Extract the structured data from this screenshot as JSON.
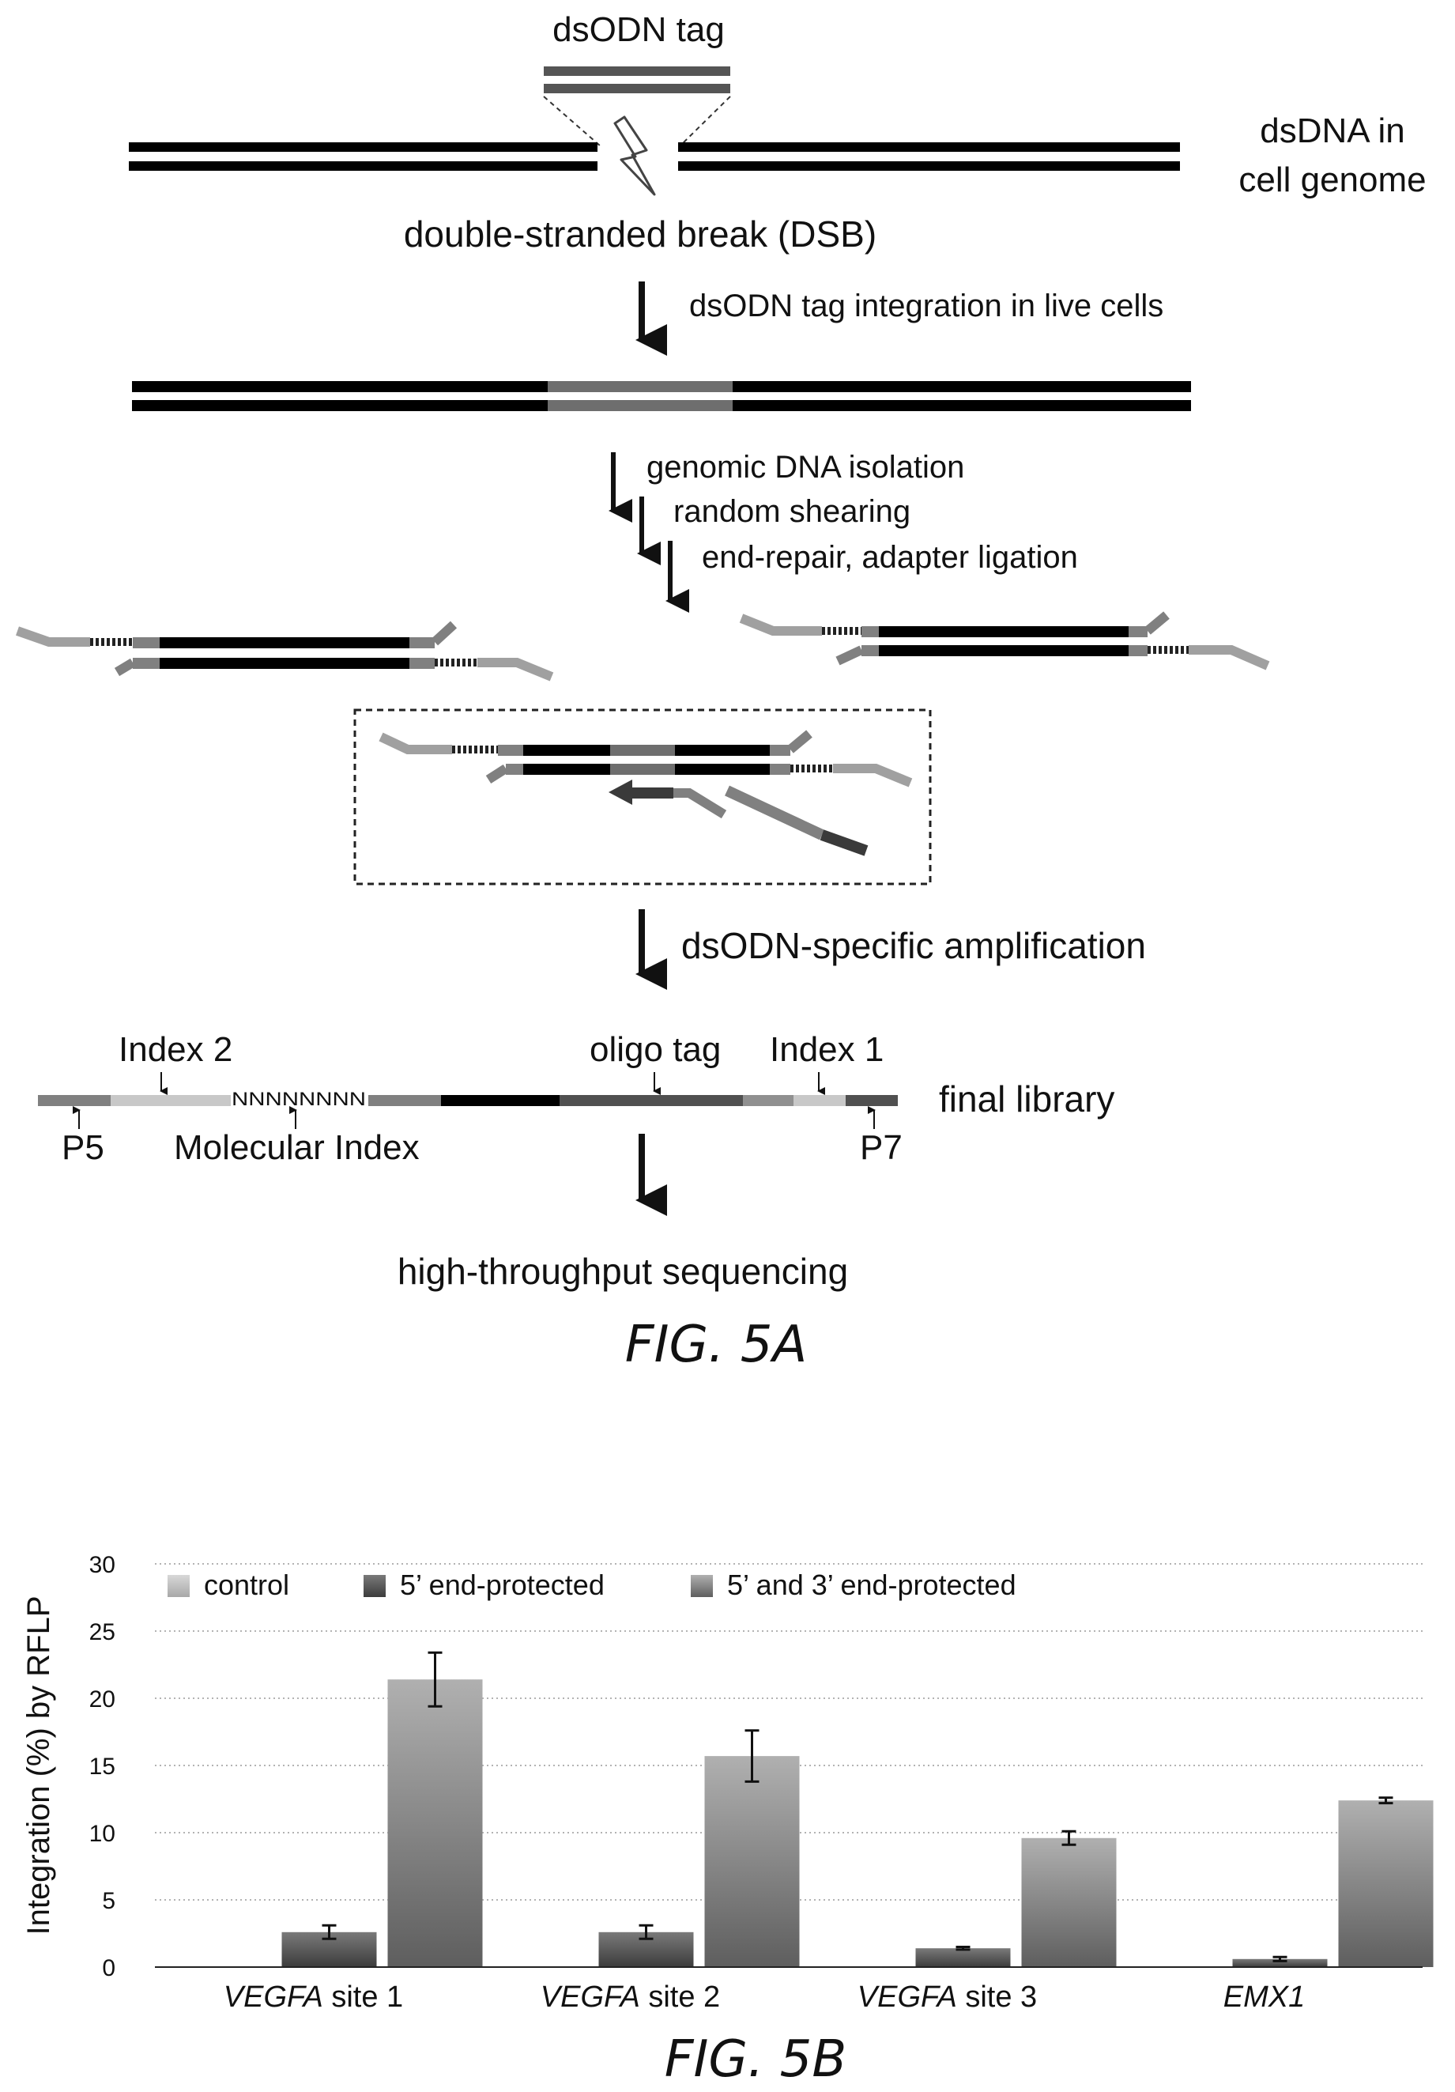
{
  "fig5a": {
    "tag_label": "dsODN tag",
    "genome_label_line1": "dsDNA in",
    "genome_label_line2": "cell genome",
    "dsb_label": "double-stranded break (DSB)",
    "step_integration": "dsODN tag integration in live cells",
    "step_isolation": "genomic DNA isolation",
    "step_shearing": "random shearing",
    "step_ligation": "end-repair, adapter ligation",
    "step_amplification": "dsODN-specific amplification",
    "index2_label": "Index 2",
    "oligo_tag_label": "oligo tag",
    "index1_label": "Index 1",
    "final_library_label": "final library",
    "p5_label": "P5",
    "molecular_index_label": "Molecular Index",
    "nnn_label": "NNNNNNNN",
    "p7_label": "P7",
    "step_sequencing": "high-throughput sequencing",
    "caption": "FIG. 5A"
  },
  "fig5b": {
    "caption": "FIG. 5B",
    "colors": {
      "control": "#bdbdbd",
      "five_prime": "#5a5a5a",
      "both": "#8f8f8f"
    }
  },
  "chart_data": {
    "type": "bar",
    "title": "",
    "xlabel": "",
    "ylabel": "Integration (%) by RFLP",
    "ylim": [
      0,
      30
    ],
    "yticks": [
      0,
      5,
      10,
      15,
      20,
      25,
      30
    ],
    "grid": true,
    "legend_position": "top",
    "categories_main": [
      "VEGFA",
      "VEGFA",
      "VEGFA",
      "EMX1"
    ],
    "categories_suffix": [
      " site 1",
      " site 2",
      " site 3",
      ""
    ],
    "series": [
      {
        "name": "control",
        "values": [
          0,
          0,
          0,
          0
        ]
      },
      {
        "name": "5’ end-protected",
        "values": [
          2.6,
          2.6,
          1.4,
          0.6
        ],
        "error": [
          0.5,
          0.5,
          0.1,
          0.15
        ]
      },
      {
        "name": "5’ and 3’ end-protected",
        "values": [
          21.4,
          15.7,
          9.6,
          12.4
        ],
        "error": [
          2.0,
          1.9,
          0.5,
          0.2
        ]
      }
    ]
  }
}
